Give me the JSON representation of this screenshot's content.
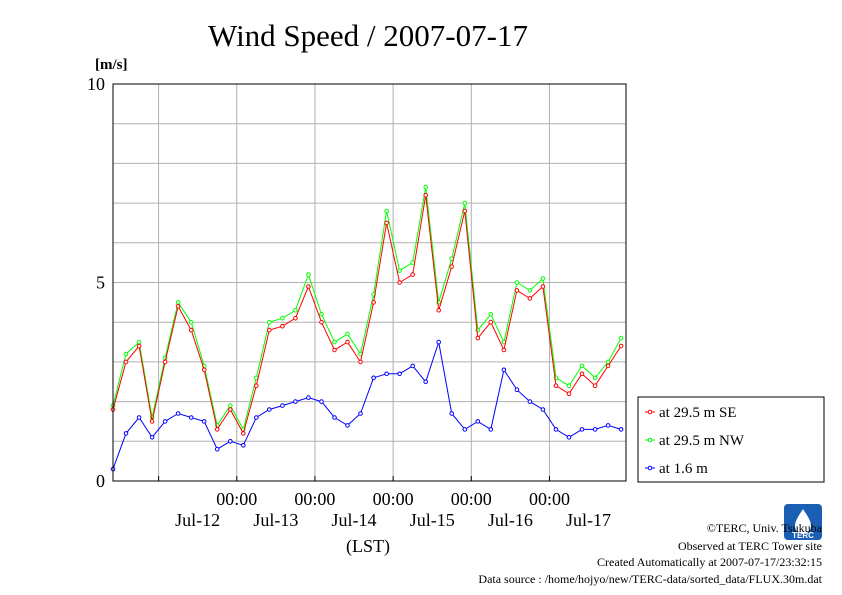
{
  "chart_data": {
    "type": "line",
    "title": "Wind Speed / 2007-07-17",
    "ylabel": "[m/s]",
    "xlabel": "(LST)",
    "ylim": [
      0,
      10
    ],
    "yticks": [
      0,
      5,
      10
    ],
    "xlim": [
      "2007-07-11T10:00",
      "2007-07-17T23:30"
    ],
    "time_ticks": [
      "00:00",
      "00:00",
      "00:00",
      "00:00",
      "00:00"
    ],
    "day_labels": [
      "Jul-12",
      "Jul-13",
      "Jul-14",
      "Jul-15",
      "Jul-16",
      "Jul-17"
    ],
    "grid": true,
    "legend_position": "right",
    "series": [
      {
        "name": "at 29.5 m SE",
        "color": "#ff0000",
        "x": [
          "2007-07-11T10:00",
          "2007-07-11T14:00",
          "2007-07-11T18:00",
          "2007-07-11T22:00",
          "2007-07-12T02:00",
          "2007-07-12T06:00",
          "2007-07-12T10:00",
          "2007-07-12T14:00",
          "2007-07-12T18:00",
          "2007-07-12T22:00",
          "2007-07-13T02:00",
          "2007-07-13T06:00",
          "2007-07-13T10:00",
          "2007-07-13T14:00",
          "2007-07-13T18:00",
          "2007-07-13T22:00",
          "2007-07-14T02:00",
          "2007-07-14T06:00",
          "2007-07-14T10:00",
          "2007-07-14T14:00",
          "2007-07-14T18:00",
          "2007-07-14T22:00",
          "2007-07-15T02:00",
          "2007-07-15T06:00",
          "2007-07-15T10:00",
          "2007-07-15T14:00",
          "2007-07-15T18:00",
          "2007-07-15T22:00",
          "2007-07-16T02:00",
          "2007-07-16T06:00",
          "2007-07-16T10:00",
          "2007-07-16T14:00",
          "2007-07-16T18:00",
          "2007-07-16T22:00",
          "2007-07-17T02:00",
          "2007-07-17T06:00",
          "2007-07-17T10:00",
          "2007-07-17T14:00",
          "2007-07-17T18:00",
          "2007-07-17T22:00"
        ],
        "values": [
          1.8,
          3.0,
          3.4,
          1.5,
          3.0,
          4.4,
          3.8,
          2.8,
          1.3,
          1.8,
          1.2,
          2.4,
          3.8,
          3.9,
          4.1,
          4.9,
          4.0,
          3.3,
          3.5,
          3.0,
          4.5,
          6.5,
          5.0,
          5.2,
          7.2,
          4.3,
          5.4,
          6.8,
          3.6,
          4.0,
          3.3,
          4.8,
          4.6,
          4.9,
          2.4,
          2.2,
          2.7,
          2.4,
          2.9,
          3.4
        ]
      },
      {
        "name": "at 29.5 m NW",
        "color": "#00ff00",
        "x": [
          "2007-07-11T10:00",
          "2007-07-11T14:00",
          "2007-07-11T18:00",
          "2007-07-11T22:00",
          "2007-07-12T02:00",
          "2007-07-12T06:00",
          "2007-07-12T10:00",
          "2007-07-12T14:00",
          "2007-07-12T18:00",
          "2007-07-12T22:00",
          "2007-07-13T02:00",
          "2007-07-13T06:00",
          "2007-07-13T10:00",
          "2007-07-13T14:00",
          "2007-07-13T18:00",
          "2007-07-13T22:00",
          "2007-07-14T02:00",
          "2007-07-14T06:00",
          "2007-07-14T10:00",
          "2007-07-14T14:00",
          "2007-07-14T18:00",
          "2007-07-14T22:00",
          "2007-07-15T02:00",
          "2007-07-15T06:00",
          "2007-07-15T10:00",
          "2007-07-15T14:00",
          "2007-07-15T18:00",
          "2007-07-15T22:00",
          "2007-07-16T02:00",
          "2007-07-16T06:00",
          "2007-07-16T10:00",
          "2007-07-16T14:00",
          "2007-07-16T18:00",
          "2007-07-16T22:00",
          "2007-07-17T02:00",
          "2007-07-17T06:00",
          "2007-07-17T10:00",
          "2007-07-17T14:00",
          "2007-07-17T18:00",
          "2007-07-17T22:00"
        ],
        "values": [
          1.9,
          3.2,
          3.5,
          1.6,
          3.1,
          4.5,
          4.0,
          2.9,
          1.4,
          1.9,
          1.3,
          2.6,
          4.0,
          4.1,
          4.3,
          5.2,
          4.2,
          3.5,
          3.7,
          3.2,
          4.7,
          6.8,
          5.3,
          5.5,
          7.4,
          4.5,
          5.6,
          7.0,
          3.8,
          4.2,
          3.5,
          5.0,
          4.8,
          5.1,
          2.6,
          2.4,
          2.9,
          2.6,
          3.0,
          3.6
        ]
      },
      {
        "name": "at 1.6 m",
        "color": "#0000ff",
        "x": [
          "2007-07-11T10:00",
          "2007-07-11T14:00",
          "2007-07-11T18:00",
          "2007-07-11T22:00",
          "2007-07-12T02:00",
          "2007-07-12T06:00",
          "2007-07-12T10:00",
          "2007-07-12T14:00",
          "2007-07-12T18:00",
          "2007-07-12T22:00",
          "2007-07-13T02:00",
          "2007-07-13T06:00",
          "2007-07-13T10:00",
          "2007-07-13T14:00",
          "2007-07-13T18:00",
          "2007-07-13T22:00",
          "2007-07-14T02:00",
          "2007-07-14T06:00",
          "2007-07-14T10:00",
          "2007-07-14T14:00",
          "2007-07-14T18:00",
          "2007-07-14T22:00",
          "2007-07-15T02:00",
          "2007-07-15T06:00",
          "2007-07-15T10:00",
          "2007-07-15T14:00",
          "2007-07-15T18:00",
          "2007-07-15T22:00",
          "2007-07-16T02:00",
          "2007-07-16T06:00",
          "2007-07-16T10:00",
          "2007-07-16T14:00",
          "2007-07-16T18:00",
          "2007-07-16T22:00",
          "2007-07-17T02:00",
          "2007-07-17T06:00",
          "2007-07-17T10:00",
          "2007-07-17T14:00",
          "2007-07-17T18:00",
          "2007-07-17T22:00"
        ],
        "values": [
          0.3,
          1.2,
          1.6,
          1.1,
          1.5,
          1.7,
          1.6,
          1.5,
          0.8,
          1.0,
          0.9,
          1.6,
          1.8,
          1.9,
          2.0,
          2.1,
          2.0,
          1.6,
          1.4,
          1.7,
          2.6,
          2.7,
          2.7,
          2.9,
          2.5,
          3.5,
          1.7,
          1.3,
          1.5,
          1.3,
          2.8,
          2.3,
          2.0,
          1.8,
          1.3,
          1.1,
          1.3,
          1.3,
          1.4,
          1.3
        ]
      }
    ]
  },
  "footer": {
    "credit": "©TERC, Univ. Tsukuba",
    "observed": "Observed at TERC Tower site",
    "created": "Created Automatically at 2007-07-17/23:32:15",
    "source": "Data source : /home/hojyo/new/TERC-data/sorted_data/FLUX.30m.dat"
  },
  "logo": {
    "text": "TERC",
    "color": "#1a5fb4"
  }
}
